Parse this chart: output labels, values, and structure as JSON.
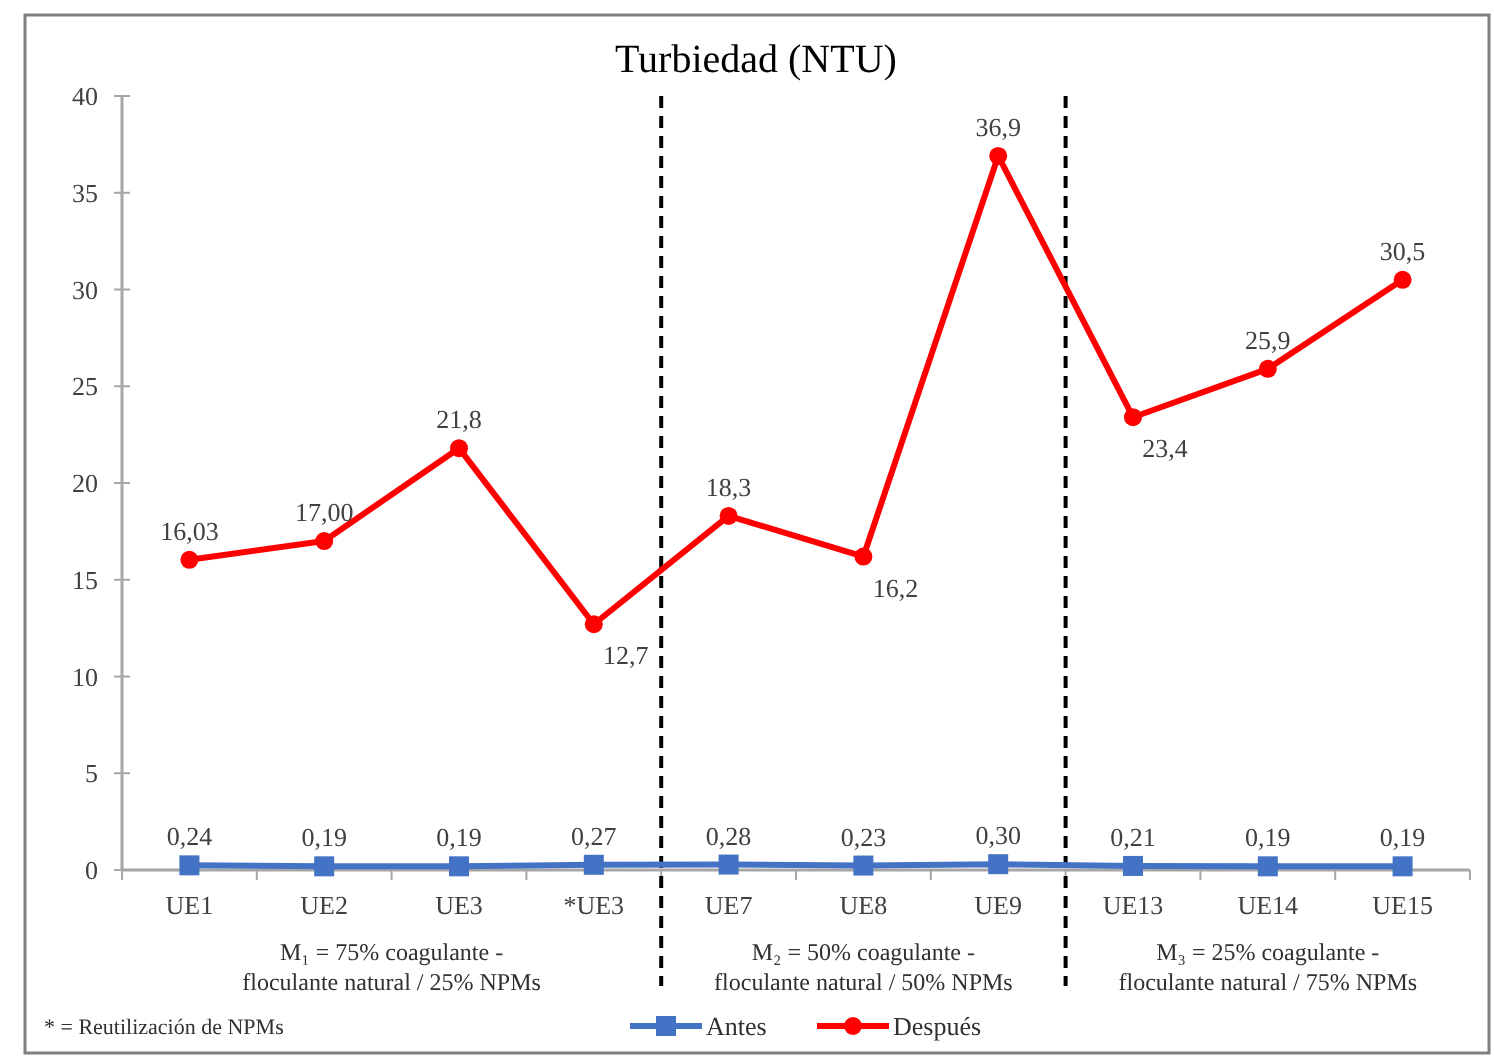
{
  "chart_data": {
    "type": "line",
    "title": "Turbiedad (NTU)",
    "categories": [
      "UE1",
      "UE2",
      "UE3",
      "*UE3",
      "UE7",
      "UE8",
      "UE9",
      "UE13",
      "UE14",
      "UE15"
    ],
    "series": [
      {
        "name": "Antes",
        "color": "#4472c4",
        "marker": "square",
        "values": [
          0.24,
          0.19,
          0.19,
          0.27,
          0.28,
          0.23,
          0.3,
          0.21,
          0.19,
          0.19
        ],
        "value_labels": [
          "0,24",
          "0,19",
          "0,19",
          "0,27",
          "0,28",
          "0,23",
          "0,30",
          "0,21",
          "0,19",
          "0,19"
        ]
      },
      {
        "name": "Después",
        "color": "#ff0000",
        "marker": "circle",
        "values": [
          16.03,
          17.0,
          21.8,
          12.7,
          18.3,
          16.2,
          36.9,
          23.4,
          25.9,
          30.5
        ],
        "value_labels": [
          "16,03",
          "17,00",
          "21,8",
          "12,7",
          "18,3",
          "16,2",
          "36,9",
          "23,4",
          "25,9",
          "30,5"
        ]
      }
    ],
    "ylim": [
      0,
      40
    ],
    "yticks": [
      0,
      5,
      10,
      15,
      20,
      25,
      30,
      35,
      40
    ],
    "legend": "bottom",
    "annotations": [
      "M₁ = 75% coagulante - floculante natural / 25% NPMs",
      "M₂ = 50% coagulante - floculante natural / 50% NPMs",
      "M₃ = 25% coagulante - floculante natural / 75% NPMs",
      "* = Reutilización de NPMs"
    ]
  }
}
